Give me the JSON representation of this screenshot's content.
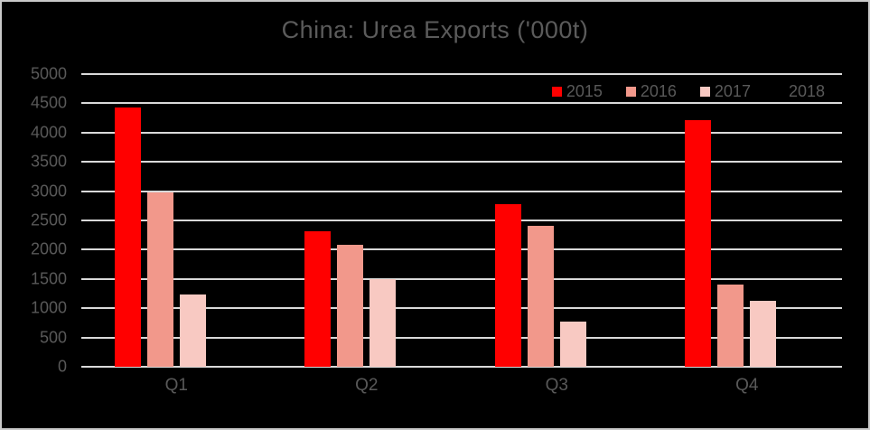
{
  "chart_data": {
    "type": "bar",
    "title": "China: Urea Exports ('000t)",
    "categories": [
      "Q1",
      "Q2",
      "Q3",
      "Q4"
    ],
    "series": [
      {
        "name": "2015",
        "color": "#ff0000",
        "values": [
          4430,
          2320,
          2780,
          4210
        ]
      },
      {
        "name": "2016",
        "color": "#f2988b",
        "values": [
          2980,
          2090,
          2410,
          1400
        ]
      },
      {
        "name": "2017",
        "color": "#f8c9c2",
        "values": [
          1230,
          1500,
          770,
          1120
        ]
      },
      {
        "name": "2018",
        "color": "none",
        "values": [
          null,
          null,
          null,
          null
        ]
      }
    ],
    "ylim": [
      0,
      5000
    ],
    "ytick_step": 500,
    "ytick_labels": [
      "0",
      "500",
      "1000",
      "1500",
      "2000",
      "2500",
      "3000",
      "3500",
      "4000",
      "4500",
      "5000"
    ],
    "grid": true,
    "legend_position": "top-right"
  },
  "colors": {
    "background": "#000000",
    "text": "#595959",
    "gridline": "#d9d9d9",
    "frame_border": "#c9c9c9"
  }
}
